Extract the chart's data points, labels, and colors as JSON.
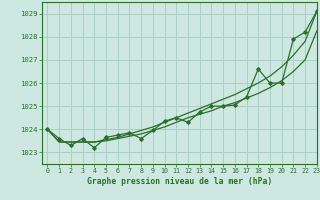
{
  "background_color": "#cce8e0",
  "grid_color": "#aacfc8",
  "line_color": "#2d6e2d",
  "title": "Graphe pression niveau de la mer (hPa)",
  "xlim": [
    -0.5,
    23
  ],
  "ylim": [
    1022.5,
    1029.5
  ],
  "yticks": [
    1023,
    1024,
    1025,
    1026,
    1027,
    1028,
    1029
  ],
  "xticks": [
    0,
    1,
    2,
    3,
    4,
    5,
    6,
    7,
    8,
    9,
    10,
    11,
    12,
    13,
    14,
    15,
    16,
    17,
    18,
    19,
    20,
    21,
    22,
    23
  ],
  "main_data": [
    1024.0,
    1023.6,
    1023.3,
    1023.6,
    1023.2,
    1023.65,
    1023.75,
    1023.85,
    1023.6,
    1023.95,
    1024.35,
    1024.5,
    1024.3,
    1024.75,
    1025.0,
    1025.0,
    1025.05,
    1025.4,
    1026.6,
    1026.0,
    1026.0,
    1027.9,
    1028.2,
    1029.1
  ],
  "smooth_line1": [
    1024.0,
    1023.45,
    1023.45,
    1023.45,
    1023.45,
    1023.5,
    1023.6,
    1023.7,
    1023.8,
    1023.95,
    1024.1,
    1024.3,
    1024.5,
    1024.65,
    1024.8,
    1025.0,
    1025.15,
    1025.35,
    1025.55,
    1025.8,
    1026.1,
    1026.5,
    1027.0,
    1028.25
  ],
  "smooth_line2": [
    1024.0,
    1023.45,
    1023.45,
    1023.45,
    1023.45,
    1023.55,
    1023.65,
    1023.8,
    1023.95,
    1024.1,
    1024.3,
    1024.5,
    1024.7,
    1024.9,
    1025.1,
    1025.3,
    1025.5,
    1025.75,
    1026.0,
    1026.3,
    1026.7,
    1027.2,
    1027.8,
    1029.1
  ]
}
